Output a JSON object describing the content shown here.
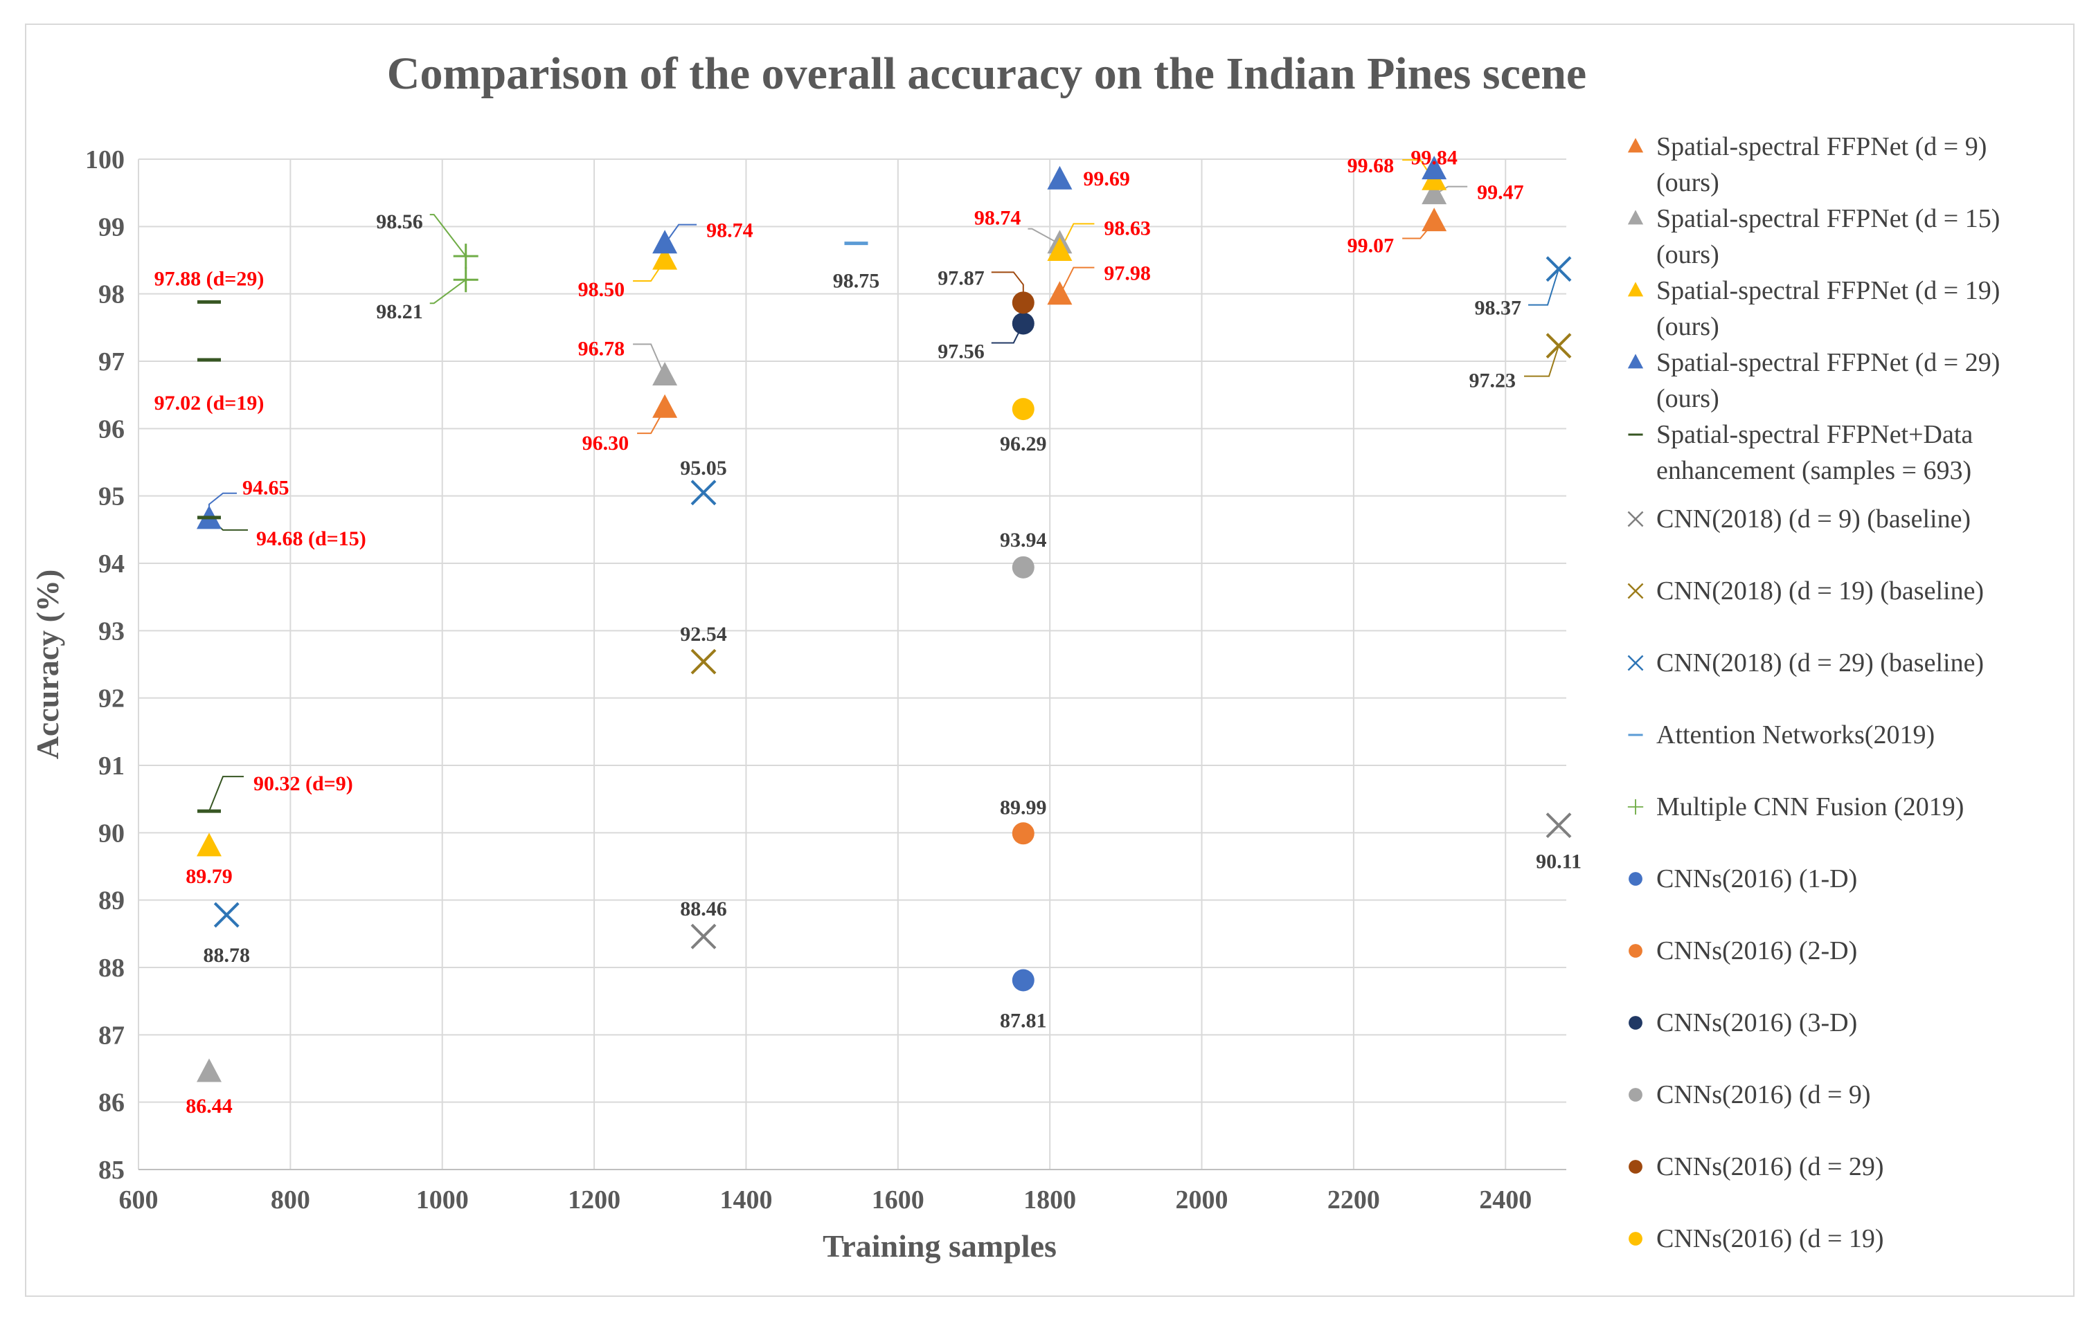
{
  "chart_data": {
    "type": "scatter",
    "title": "Comparison of the overall accuracy on the Indian Pines scene",
    "xlabel": "Training samples",
    "ylabel": "Accuracy (%)",
    "xlim": [
      600,
      2480
    ],
    "ylim": [
      85,
      100
    ],
    "xticks": [
      "600",
      "800",
      "1000",
      "1200",
      "1400",
      "1600",
      "1800",
      "2000",
      "2200",
      "2400"
    ],
    "xtick_values": [
      600,
      800,
      1000,
      1200,
      1400,
      1600,
      1800,
      2000,
      2200,
      2400
    ],
    "yticks": [
      "85",
      "86",
      "87",
      "88",
      "89",
      "90",
      "91",
      "92",
      "93",
      "94",
      "95",
      "96",
      "97",
      "98",
      "99",
      "100"
    ],
    "ytick_values": [
      85,
      86,
      87,
      88,
      89,
      90,
      91,
      92,
      93,
      94,
      95,
      96,
      97,
      98,
      99,
      100
    ],
    "grid": true,
    "legend_position": "right",
    "series": [
      {
        "name": "Spatial-spectral FFPNet (d = 9) (ours)",
        "legend_lines": [
          "Spatial-spectral FFPNet (d = 9)",
          "(ours)"
        ],
        "marker": "triangle",
        "color": "#ed7d31",
        "points": [
          {
            "x": 1293,
            "y": 96.3,
            "label": "96.30"
          },
          {
            "x": 1813,
            "y": 97.98,
            "label": "97.98"
          },
          {
            "x": 2306,
            "y": 99.07,
            "label": "99.07"
          }
        ]
      },
      {
        "name": "Spatial-spectral FFPNet (d = 15) (ours)",
        "legend_lines": [
          "Spatial-spectral FFPNet (d = 15)",
          "(ours)"
        ],
        "marker": "triangle",
        "color": "#a5a5a5",
        "points": [
          {
            "x": 693,
            "y": 86.44,
            "label": "86.44"
          },
          {
            "x": 1293,
            "y": 96.78,
            "label": "96.78"
          },
          {
            "x": 1813,
            "y": 98.74,
            "label": "98.74"
          },
          {
            "x": 2306,
            "y": 99.47,
            "label": "99.47"
          }
        ]
      },
      {
        "name": "Spatial-spectral FFPNet (d = 19) (ours)",
        "legend_lines": [
          "Spatial-spectral FFPNet (d = 19)",
          "(ours)"
        ],
        "marker": "triangle",
        "color": "#ffc000",
        "points": [
          {
            "x": 693,
            "y": 89.79,
            "label": "89.79"
          },
          {
            "x": 1293,
            "y": 98.5,
            "label": "98.50"
          },
          {
            "x": 1813,
            "y": 98.63,
            "label": "98.63"
          },
          {
            "x": 2306,
            "y": 99.68,
            "label": "99.68"
          }
        ]
      },
      {
        "name": "Spatial-spectral FFPNet (d = 29) (ours)",
        "legend_lines": [
          "Spatial-spectral FFPNet (d = 29)",
          "(ours)"
        ],
        "marker": "triangle",
        "color": "#4472c4",
        "points": [
          {
            "x": 693,
            "y": 94.65,
            "label": "94.65"
          },
          {
            "x": 1293,
            "y": 98.74,
            "label": "98.74"
          },
          {
            "x": 1813,
            "y": 99.69,
            "label": "99.69"
          },
          {
            "x": 2306,
            "y": 99.84,
            "label": "99.84"
          }
        ]
      },
      {
        "name": "Spatial-spectral FFPNet+Data enhancement (samples = 693)",
        "legend_lines": [
          "Spatial-spectral FFPNet+Data",
          "enhancement (samples = 693)"
        ],
        "marker": "dash",
        "color": "#375623",
        "points": [
          {
            "x": 693,
            "y": 90.32,
            "label": "90.32 (d=9)"
          },
          {
            "x": 693,
            "y": 94.68,
            "label": "94.68 (d=15)"
          },
          {
            "x": 693,
            "y": 97.02,
            "label": "97.02 (d=19)"
          },
          {
            "x": 693,
            "y": 97.88,
            "label": "97.88 (d=29)"
          }
        ]
      },
      {
        "name": "CNN(2018) (d = 9)   (baseline)",
        "legend_lines": [
          "CNN(2018) (d = 9)   (baseline)"
        ],
        "marker": "x",
        "color": "#7f7f7f",
        "points": [
          {
            "x": 1344,
            "y": 88.46,
            "label": "88.46"
          },
          {
            "x": 2470,
            "y": 90.11,
            "label": "90.11"
          }
        ]
      },
      {
        "name": "CNN(2018) (d = 19) (baseline)",
        "legend_lines": [
          "CNN(2018) (d = 19) (baseline)"
        ],
        "marker": "x",
        "color": "#9c7c1a",
        "points": [
          {
            "x": 1344,
            "y": 92.54,
            "label": "92.54"
          },
          {
            "x": 2470,
            "y": 97.23,
            "label": "97.23"
          }
        ]
      },
      {
        "name": "CNN(2018) (d = 29) (baseline)",
        "legend_lines": [
          "CNN(2018) (d = 29) (baseline)"
        ],
        "marker": "x",
        "color": "#2e75b6",
        "points": [
          {
            "x": 716,
            "y": 88.78,
            "label": "88.78"
          },
          {
            "x": 1344,
            "y": 95.05,
            "label": "95.05"
          },
          {
            "x": 2470,
            "y": 98.37,
            "label": "98.37"
          }
        ]
      },
      {
        "name": "Attention Networks(2019)",
        "legend_lines": [
          "Attention Networks(2019)"
        ],
        "marker": "dash",
        "color": "#5b9bd5",
        "points": [
          {
            "x": 1545,
            "y": 98.75,
            "label": "98.75"
          }
        ]
      },
      {
        "name": "Multiple CNN Fusion (2019)",
        "legend_lines": [
          "Multiple CNN Fusion (2019)"
        ],
        "marker": "plus",
        "color": "#70ad47",
        "points": [
          {
            "x": 1031,
            "y": 98.21,
            "label": "98.21"
          },
          {
            "x": 1031,
            "y": 98.56,
            "label": "98.56"
          }
        ]
      },
      {
        "name": "CNNs(2016) (1-D)",
        "legend_lines": [
          "CNNs(2016) (1-D)"
        ],
        "marker": "circle",
        "color": "#4472c4",
        "points": [
          {
            "x": 1765,
            "y": 87.81,
            "label": "87.81"
          }
        ]
      },
      {
        "name": "CNNs(2016) (2-D)",
        "legend_lines": [
          "CNNs(2016) (2-D)"
        ],
        "marker": "circle",
        "color": "#ed7d31",
        "points": [
          {
            "x": 1765,
            "y": 89.99,
            "label": "89.99"
          }
        ]
      },
      {
        "name": "CNNs(2016) (3-D)",
        "legend_lines": [
          "CNNs(2016) (3-D)"
        ],
        "marker": "circle",
        "color": "#203864",
        "points": [
          {
            "x": 1765,
            "y": 97.56,
            "label": "97.56"
          }
        ]
      },
      {
        "name": "CNNs(2016) (d = 9)",
        "legend_lines": [
          "CNNs(2016) (d = 9)"
        ],
        "marker": "circle",
        "color": "#a5a5a5",
        "points": [
          {
            "x": 1765,
            "y": 93.94,
            "label": "93.94"
          }
        ]
      },
      {
        "name": "CNNs(2016) (d = 29)",
        "legend_lines": [
          "CNNs(2016) (d = 29)"
        ],
        "marker": "circle",
        "color": "#9e480e",
        "points": [
          {
            "x": 1765,
            "y": 97.87,
            "label": "97.87"
          }
        ]
      },
      {
        "name": "CNNs(2016) (d = 19)",
        "legend_lines": [
          "CNNs(2016) (d = 19)"
        ],
        "marker": "circle",
        "color": "#ffc000",
        "points": [
          {
            "x": 1765,
            "y": 96.29,
            "label": "96.29"
          }
        ]
      }
    ]
  }
}
